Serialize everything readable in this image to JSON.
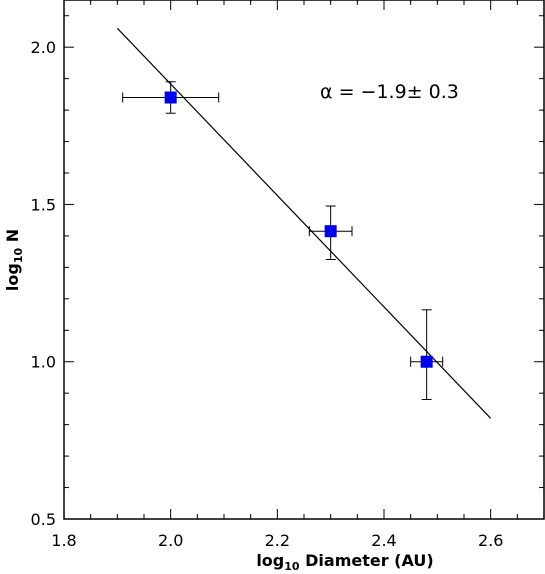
{
  "chart_data": {
    "type": "scatter",
    "title": "",
    "xlabel": "log10 Diameter (AU)",
    "ylabel": "log10 N",
    "xlim": [
      1.8,
      2.7
    ],
    "ylim": [
      0.5,
      2.15
    ],
    "xticks": [
      1.8,
      2.0,
      2.2,
      2.4,
      2.6
    ],
    "xtick_labels": [
      "1.8",
      "2.0",
      "2.2",
      "2.4",
      "2.6"
    ],
    "yticks": [
      0.5,
      1.0,
      1.5,
      2.0
    ],
    "ytick_labels": [
      "0.5",
      "1.0",
      "1.5",
      "2.0"
    ],
    "grid": false,
    "points": [
      {
        "x": 2.0,
        "y": 1.84,
        "xerr": [
          0.09,
          0.09
        ],
        "yerr": [
          0.05,
          0.05
        ]
      },
      {
        "x": 2.3,
        "y": 1.415,
        "xerr": [
          0.04,
          0.04
        ],
        "yerr": [
          0.09,
          0.08
        ]
      },
      {
        "x": 2.48,
        "y": 1.0,
        "xerr": [
          0.03,
          0.03
        ],
        "yerr": [
          0.12,
          0.165
        ]
      }
    ],
    "fit_line": {
      "x": [
        1.9,
        2.6
      ],
      "y": [
        2.06,
        0.82
      ]
    },
    "annotation": "α = −1.9± 0.3",
    "colors": {
      "marker": "#0000ee",
      "line": "#000000"
    }
  }
}
